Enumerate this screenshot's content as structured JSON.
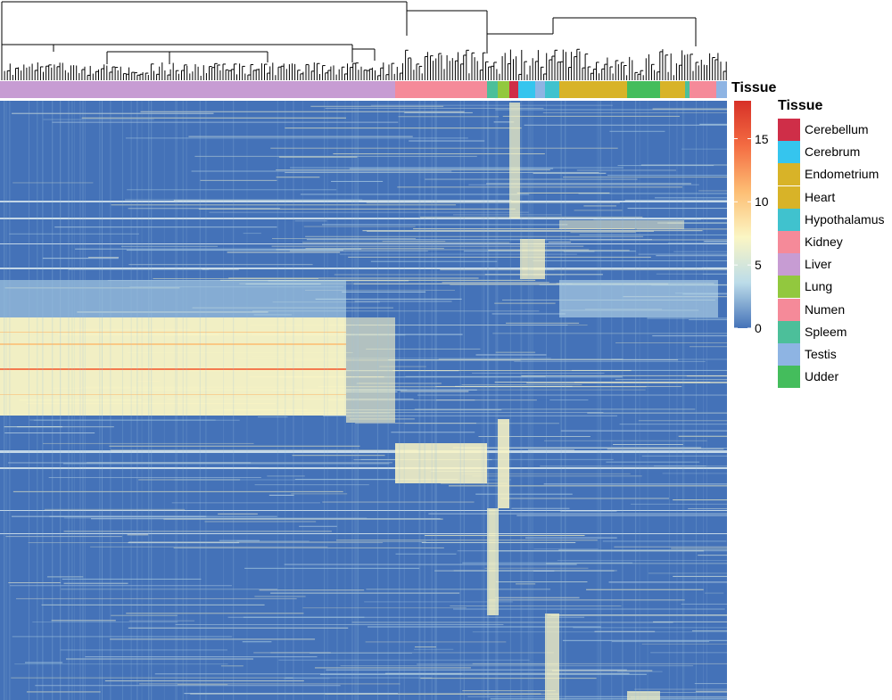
{
  "chart_data": {
    "type": "heatmap",
    "annotation_title": "Tissue",
    "legend_title": "Tissue",
    "colorbar": {
      "ticks": [
        0,
        5,
        10,
        15
      ],
      "range": [
        0,
        18
      ],
      "colors": [
        "#4472b8",
        "#bcdce9",
        "#fbf6c4",
        "#fdbe74",
        "#f46d43",
        "#d73027"
      ]
    },
    "tissues": [
      {
        "name": "Cerebellum",
        "color": "#cf2e48"
      },
      {
        "name": "Cerebrum",
        "color": "#35c5ee"
      },
      {
        "name": "Endometrium",
        "color": "#d8b328"
      },
      {
        "name": "Heart",
        "color": "#d8b328"
      },
      {
        "name": "Hypothalamus",
        "color": "#40c2ce"
      },
      {
        "name": "Kidney",
        "color": "#f58a99"
      },
      {
        "name": "Liver",
        "color": "#c79cd3"
      },
      {
        "name": "Lung",
        "color": "#92c83e"
      },
      {
        "name": "Numen",
        "color": "#f58a99"
      },
      {
        "name": "Spleem",
        "color": "#4cbf9a"
      },
      {
        "name": "Testis",
        "color": "#8eb4e3"
      },
      {
        "name": "Udder",
        "color": "#44bd5c"
      }
    ],
    "column_annotation": [
      "Liver",
      "Kidney",
      "Spleem",
      "Lung",
      "Cerebellum",
      "Cerebrum",
      "Testis",
      "Hypothalamus",
      "Endometrium",
      "Udder",
      "Heart",
      "Spleem",
      "Numen",
      "Testis"
    ],
    "blocks": [
      {
        "region": "Liver",
        "rows": "upper-middle",
        "level": 10
      },
      {
        "region": "Kidney",
        "rows": "middle",
        "level": 10
      },
      {
        "region": "Spleem/Lung",
        "rows": "lower-middle",
        "level": 7
      },
      {
        "region": "Testis",
        "rows": "bottom",
        "level": 8
      },
      {
        "region": "Cerebrum",
        "rows": "top",
        "level": 9
      }
    ]
  }
}
